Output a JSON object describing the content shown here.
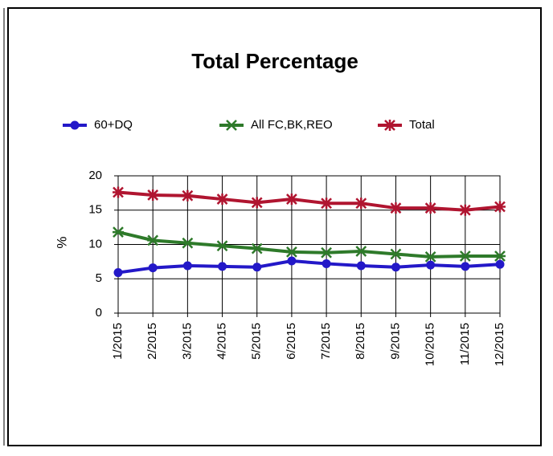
{
  "chart_data": {
    "type": "line",
    "title": "Total Percentage",
    "y_label": "%",
    "categories": [
      "1/2015",
      "2/2015",
      "3/2015",
      "4/2015",
      "5/2015",
      "6/2015",
      "7/2015",
      "8/2015",
      "9/2015",
      "10/2015",
      "11/2015",
      "12/2015"
    ],
    "series": [
      {
        "name": "60+DQ",
        "color": "#2318c8",
        "marker": "circle",
        "values": [
          5.9,
          6.6,
          6.9,
          6.8,
          6.7,
          7.6,
          7.2,
          6.9,
          6.7,
          7.0,
          6.8,
          7.1
        ]
      },
      {
        "name": "All FC,BK,REO",
        "color": "#2e7a2a",
        "marker": "x",
        "values": [
          11.8,
          10.6,
          10.2,
          9.8,
          9.4,
          8.9,
          8.8,
          9.0,
          8.6,
          8.2,
          8.3,
          8.3
        ]
      },
      {
        "name": "Total",
        "color": "#b01530",
        "marker": "star",
        "values": [
          17.6,
          17.2,
          17.1,
          16.6,
          16.1,
          16.6,
          16.0,
          16.0,
          15.3,
          15.3,
          15.0,
          15.5
        ]
      }
    ],
    "ylim": [
      0,
      20
    ],
    "yticks": [
      0,
      5,
      10,
      15,
      20
    ],
    "grid": true
  }
}
